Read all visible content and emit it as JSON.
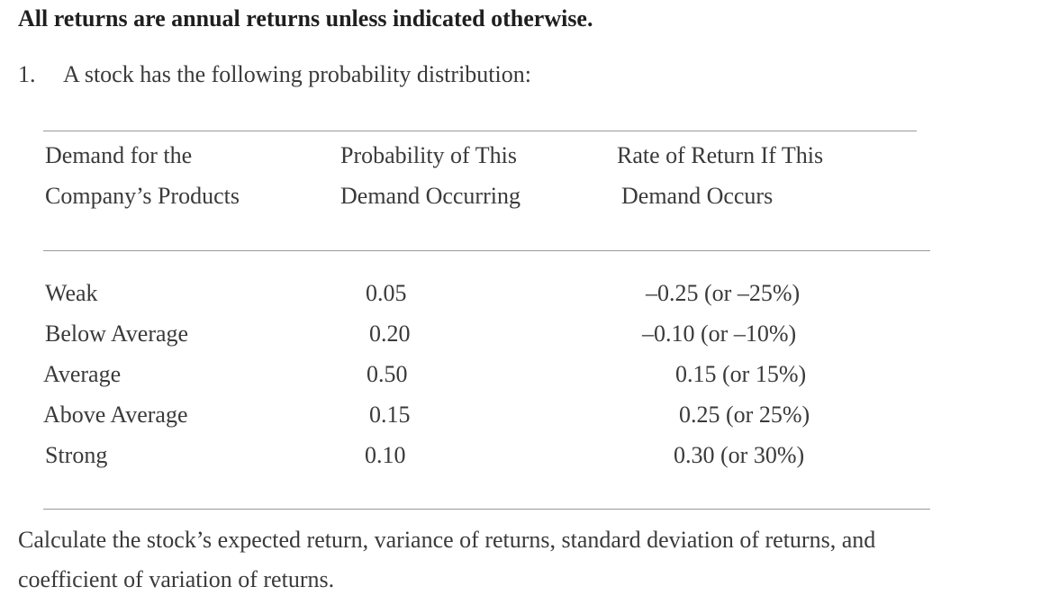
{
  "heading": "All returns are annual returns unless indicated otherwise.",
  "question": {
    "number": "1.",
    "text": "A stock has the following probability distribution:"
  },
  "table": {
    "headers": [
      {
        "line1": "Demand for the",
        "line2": "Company’s Products"
      },
      {
        "line1": "Probability of This",
        "line2": "Demand Occurring"
      },
      {
        "line1": "Rate of Return If This",
        "line2": "Demand Occurs"
      }
    ],
    "rows": [
      {
        "demand": "Weak",
        "probability": "0.05",
        "return": "–0.25 (or –25%)"
      },
      {
        "demand": "Below Average",
        "probability": "0.20",
        "return": "–0.10 (or –10%)"
      },
      {
        "demand": "Average",
        "probability": "0.50",
        "return": "0.15 (or 15%)"
      },
      {
        "demand": "Above Average",
        "probability": "0.15",
        "return": "0.25 (or 25%)"
      },
      {
        "demand": "Strong",
        "probability": "0.10",
        "return": "0.30 (or 30%)"
      }
    ]
  },
  "footer": {
    "line1": "Calculate the stock’s expected return, variance of returns, standard deviation of returns, and",
    "line2": "coefficient of variation of returns."
  }
}
